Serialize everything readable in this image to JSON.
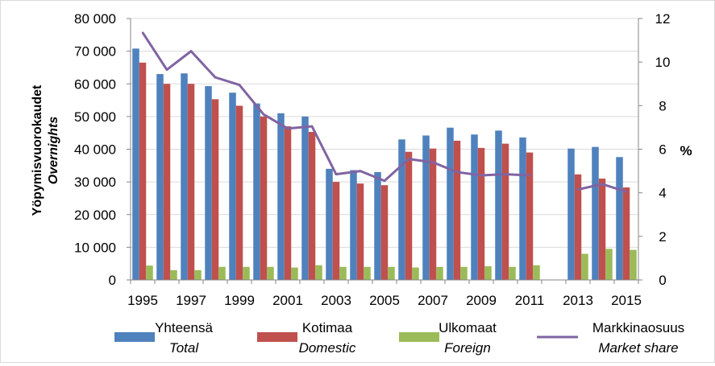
{
  "chart_data": {
    "type": "bar",
    "categories": [
      "1995",
      "1996",
      "1997",
      "1998",
      "1999",
      "2000",
      "2001",
      "2002",
      "2003",
      "2004",
      "2005",
      "2006",
      "2007",
      "2008",
      "2009",
      "2010",
      "2011",
      "2012",
      "2013",
      "2014",
      "2015"
    ],
    "x_tick_labels": [
      "1995",
      "1997",
      "1999",
      "2001",
      "2003",
      "2005",
      "2007",
      "2009",
      "2011",
      "2013",
      "2015"
    ],
    "ylabel": "Yöpymisvuorokaudet",
    "ylabel_italic": "Overnights",
    "y2label": "%",
    "ylim": [
      0,
      80000
    ],
    "y2lim": [
      0,
      12
    ],
    "y_ticks": [
      "0",
      "10 000",
      "20 000",
      "30 000",
      "40 000",
      "50 000",
      "60 000",
      "70 000",
      "80 000"
    ],
    "y2_ticks": [
      "0",
      "2",
      "4",
      "6",
      "8",
      "10",
      "12"
    ],
    "grid": true,
    "legend_position": "bottom",
    "series": [
      {
        "name": "Yhteensä",
        "name_italic": "Total",
        "kind": "bar",
        "color": "#4f81bd",
        "values": [
          70800,
          63000,
          63200,
          59300,
          57300,
          54000,
          51000,
          50000,
          34000,
          33600,
          33000,
          43000,
          44200,
          46600,
          44500,
          45700,
          43600,
          null,
          40200,
          40700,
          37600
        ]
      },
      {
        "name": "Kotimaa",
        "name_italic": "Domestic",
        "kind": "bar",
        "color": "#c0504d",
        "values": [
          66500,
          60000,
          60000,
          55300,
          53300,
          50000,
          47000,
          45300,
          30000,
          29500,
          29000,
          39200,
          40200,
          42600,
          40400,
          41700,
          39000,
          null,
          32300,
          31000,
          28300
        ]
      },
      {
        "name": "Ulkomaat",
        "name_italic": "Foreign",
        "kind": "bar",
        "color": "#9bbb59",
        "values": [
          4400,
          3000,
          3000,
          4000,
          4000,
          4000,
          3800,
          4500,
          4000,
          4000,
          4000,
          3800,
          4000,
          4000,
          4200,
          4000,
          4500,
          null,
          8000,
          9500,
          9200
        ]
      },
      {
        "name": "Markkinaosuus",
        "name_italic": "Market share",
        "kind": "line",
        "axis": "right",
        "color": "#8064a2",
        "values": [
          11.35,
          9.65,
          10.5,
          9.3,
          8.95,
          7.6,
          6.95,
          7.05,
          4.85,
          5.0,
          4.55,
          5.55,
          5.4,
          4.95,
          4.8,
          4.85,
          4.8,
          null,
          4.15,
          4.4,
          4.05
        ]
      }
    ]
  }
}
